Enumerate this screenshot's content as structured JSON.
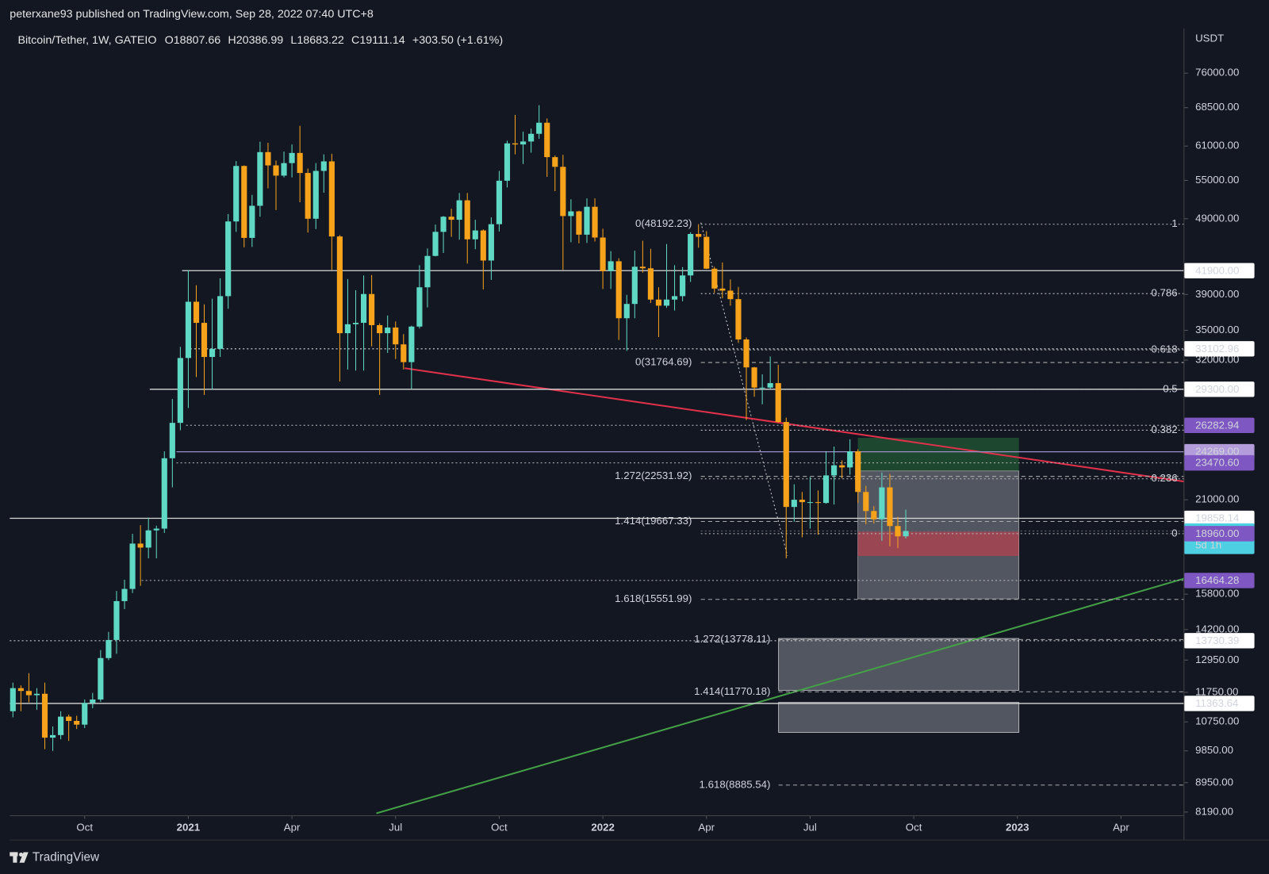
{
  "header": {
    "publisher": "peterxane93 published on TradingView.com, Sep 28, 2022 07:40 UTC+8"
  },
  "footer": {
    "brand": "TradingView"
  },
  "chart_data": {
    "type": "candlestick",
    "title": "Bitcoin/Tether, 1W, GATEIO",
    "ohlc_legend": [
      "O18807.66",
      "H20386.99",
      "L18683.22",
      "C19111.14",
      "+303.50 (+1.61%)"
    ],
    "currency": "USDT",
    "log_scale": true,
    "up_color": "#5fd9c4",
    "down_color": "#f7a21b",
    "ylim": [
      8100,
      87000
    ],
    "xlim": [
      -0.4,
      146.9
    ],
    "yticks": [
      {
        "value": 76000,
        "label": "76000.00"
      },
      {
        "value": 68500,
        "label": "68500.00"
      },
      {
        "value": 61000,
        "label": "61000.00"
      },
      {
        "value": 55000,
        "label": "55000.00"
      },
      {
        "value": 49000,
        "label": "49000.00"
      },
      {
        "value": 39000,
        "label": "39000.00"
      },
      {
        "value": 35000,
        "label": "35000.00"
      },
      {
        "value": 32000,
        "label": "32000.00"
      },
      {
        "value": 21000,
        "label": "21000.00"
      },
      {
        "value": 15800,
        "label": "15800.00"
      },
      {
        "value": 14200,
        "label": "14200.00"
      },
      {
        "value": 12950,
        "label": "12950.00"
      },
      {
        "value": 11750,
        "label": "11750.00"
      },
      {
        "value": 10750,
        "label": "10750.00"
      },
      {
        "value": 9850,
        "label": "9850.00"
      },
      {
        "value": 8950,
        "label": "8950.00"
      },
      {
        "value": 8190,
        "label": "8190.00"
      }
    ],
    "xticks": [
      {
        "value": 9,
        "label": "Oct"
      },
      {
        "value": 22,
        "label": "2021"
      },
      {
        "value": 35,
        "label": "Apr"
      },
      {
        "value": 48,
        "label": "Jul"
      },
      {
        "value": 61,
        "label": "Oct"
      },
      {
        "value": 74,
        "label": "2022"
      },
      {
        "value": 87,
        "label": "Apr"
      },
      {
        "value": 100,
        "label": "Jul"
      },
      {
        "value": 113,
        "label": "Oct"
      },
      {
        "value": 126,
        "label": "2023"
      },
      {
        "value": 139,
        "label": "Apr"
      }
    ],
    "ohlc": [
      [
        11100,
        12100,
        10900,
        11900
      ],
      [
        11900,
        12000,
        11100,
        11800
      ],
      [
        11800,
        12450,
        11400,
        11650
      ],
      [
        11650,
        11900,
        11150,
        11700
      ],
      [
        11700,
        12100,
        9900,
        10250
      ],
      [
        10250,
        10600,
        9850,
        10330
      ],
      [
        10330,
        11100,
        10200,
        10920
      ],
      [
        10920,
        10990,
        10150,
        10780
      ],
      [
        10780,
        10950,
        10520,
        10660
      ],
      [
        10660,
        11500,
        10550,
        11380
      ],
      [
        11380,
        11730,
        11200,
        11500
      ],
      [
        11500,
        13350,
        11420,
        13030
      ],
      [
        13030,
        14100,
        12950,
        13760
      ],
      [
        13760,
        15950,
        13200,
        15470
      ],
      [
        15470,
        16500,
        15100,
        16050
      ],
      [
        16050,
        18950,
        15850,
        18400
      ],
      [
        18400,
        19450,
        16200,
        18180
      ],
      [
        18180,
        19900,
        17600,
        19150
      ],
      [
        19150,
        19420,
        17600,
        19250
      ],
      [
        19250,
        24300,
        19000,
        23800
      ],
      [
        23800,
        28450,
        21800,
        26480
      ],
      [
        26480,
        33300,
        25900,
        32200
      ],
      [
        32200,
        41950,
        27700,
        38150
      ],
      [
        38150,
        40100,
        30400,
        35800
      ],
      [
        35800,
        37850,
        28800,
        32300
      ],
      [
        32300,
        38500,
        29250,
        33100
      ],
      [
        33100,
        40950,
        32300,
        38800
      ],
      [
        38800,
        49700,
        37350,
        48600
      ],
      [
        48600,
        58300,
        47100,
        57450
      ],
      [
        57450,
        57550,
        44950,
        46250
      ],
      [
        46250,
        52650,
        45000,
        50950
      ],
      [
        50950,
        61800,
        49300,
        59900
      ],
      [
        59900,
        61600,
        53700,
        57550
      ],
      [
        57550,
        58400,
        50300,
        55800
      ],
      [
        55800,
        60000,
        55500,
        57950
      ],
      [
        57950,
        61300,
        55500,
        59750
      ],
      [
        59750,
        64850,
        51500,
        56250
      ],
      [
        56250,
        57000,
        47000,
        49000
      ],
      [
        49000,
        57950,
        47500,
        56600
      ],
      [
        56600,
        59500,
        53000,
        58250
      ],
      [
        58250,
        59600,
        42000,
        46450
      ],
      [
        46450,
        46650,
        30000,
        34700
      ],
      [
        34700,
        40850,
        31100,
        35650
      ],
      [
        35650,
        39500,
        31000,
        35800
      ],
      [
        35800,
        41300,
        31000,
        39050
      ],
      [
        39050,
        41350,
        33350,
        35550
      ],
      [
        35550,
        35750,
        28800,
        34700
      ],
      [
        34700,
        36600,
        32700,
        35300
      ],
      [
        35300,
        35950,
        32100,
        33550
      ],
      [
        33550,
        34600,
        31100,
        31800
      ],
      [
        31800,
        35500,
        29300,
        35400
      ],
      [
        35400,
        42600,
        35200,
        39850
      ],
      [
        39850,
        44800,
        37500,
        43800
      ],
      [
        43800,
        48150,
        43750,
        47100
      ],
      [
        47100,
        49400,
        44200,
        49300
      ],
      [
        49300,
        50500,
        46400,
        48850
      ],
      [
        48850,
        52950,
        46000,
        51800
      ],
      [
        51800,
        52950,
        42800,
        46050
      ],
      [
        46050,
        48850,
        44700,
        47300
      ],
      [
        47300,
        47450,
        39600,
        43200
      ],
      [
        43200,
        49200,
        40750,
        48200
      ],
      [
        48200,
        56600,
        47150,
        54950
      ],
      [
        54950,
        62000,
        53850,
        61500
      ],
      [
        61500,
        67000,
        59500,
        61300
      ],
      [
        61300,
        63700,
        57800,
        61850
      ],
      [
        61850,
        64300,
        59800,
        63300
      ],
      [
        63300,
        69000,
        62350,
        65450
      ],
      [
        65450,
        66300,
        55600,
        59000
      ],
      [
        59000,
        59300,
        53250,
        57300
      ],
      [
        57300,
        59400,
        42000,
        49400
      ],
      [
        49400,
        51950,
        45650,
        50100
      ],
      [
        50100,
        50200,
        45500,
        46700
      ],
      [
        46700,
        52100,
        45550,
        50800
      ],
      [
        50800,
        52100,
        45750,
        46300
      ],
      [
        46300,
        47550,
        39650,
        41850
      ],
      [
        41850,
        44450,
        39650,
        43100
      ],
      [
        43100,
        43500,
        34000,
        36300
      ],
      [
        36300,
        38950,
        32900,
        37900
      ],
      [
        37900,
        44500,
        36300,
        42400
      ],
      [
        42400,
        45850,
        41650,
        42200
      ],
      [
        42200,
        44750,
        38000,
        38400
      ],
      [
        38400,
        39850,
        34300,
        37700
      ],
      [
        37700,
        45400,
        37450,
        38400
      ],
      [
        38400,
        42600,
        37150,
        38800
      ],
      [
        38800,
        42350,
        38200,
        41300
      ],
      [
        41300,
        47050,
        40500,
        46800
      ],
      [
        46800,
        48200,
        44900,
        46400
      ],
      [
        46400,
        47200,
        42100,
        42150
      ],
      [
        42150,
        42400,
        39200,
        39700
      ],
      [
        39700,
        42950,
        38550,
        39450
      ],
      [
        39450,
        40800,
        37700,
        38450
      ],
      [
        38450,
        39900,
        33700,
        34050
      ],
      [
        34050,
        34250,
        26700,
        31300
      ],
      [
        31300,
        31350,
        28650,
        29450
      ],
      [
        29450,
        30650,
        28000,
        29450
      ],
      [
        29450,
        32350,
        29300,
        29850
      ],
      [
        29850,
        31550,
        26500,
        26550
      ],
      [
        26550,
        26900,
        17600,
        20550
      ],
      [
        20550,
        22000,
        19650,
        21000
      ],
      [
        21000,
        21500,
        18750,
        20850
      ],
      [
        20850,
        22500,
        19250,
        20850
      ],
      [
        20850,
        21600,
        18900,
        20800
      ],
      [
        20800,
        24300,
        20750,
        22600
      ],
      [
        22600,
        24650,
        20700,
        23300
      ],
      [
        23300,
        23650,
        22400,
        23150
      ],
      [
        23150,
        25200,
        22650,
        24300
      ],
      [
        24300,
        24450,
        20800,
        21500
      ],
      [
        21500,
        21900,
        19500,
        20300
      ],
      [
        20300,
        20600,
        19550,
        19800
      ],
      [
        19800,
        22800,
        18550,
        21800
      ],
      [
        21800,
        22700,
        18250,
        19400
      ],
      [
        19400,
        19950,
        18150,
        18807
      ],
      [
        18807.66,
        20386.99,
        18683.22,
        19111.14
      ]
    ],
    "price_lines": [
      {
        "value": 41900,
        "label": "41900.00",
        "box_color": "#ffffff",
        "text_color": "#131722",
        "line": "solid",
        "line_color": "#d8d8d8"
      },
      {
        "value": 33102.96,
        "label": "33102.96",
        "box_color": "#ffffff",
        "text_color": "#131722",
        "line": "dotted",
        "line_color": "#d8d8d8"
      },
      {
        "value": 29300,
        "label": "29300.00",
        "box_color": "#ffffff",
        "text_color": "#131722",
        "line": "solid",
        "line_color": "#d8d8d8"
      },
      {
        "value": 26282.94,
        "label": "26282.94",
        "box_color": "#7e57c2",
        "text_color": "#ffffff",
        "line": "dotted",
        "line_color": "#bbbbbb"
      },
      {
        "value": 24269,
        "label": "24269.00",
        "box_color": "#b39ddb",
        "text_color": "#131722",
        "line": "solid",
        "line_color": "#9c8fc7"
      },
      {
        "value": 23470.6,
        "label": "23470.60",
        "box_color": "#7e57c2",
        "text_color": "#ffffff",
        "line": "dotted",
        "line_color": "#bbbbbb"
      },
      {
        "value": 19858.14,
        "label": "19858.14",
        "box_color": "#ffffff",
        "text_color": "#131722",
        "line": "solid",
        "line_color": "#d8d8d8"
      },
      {
        "value": 19111.14,
        "label": "19111.14",
        "sublabel": "5d 1h",
        "box_color": "#4dd0e1",
        "text_color": "#131722",
        "line": "dotted",
        "line_color": "#666666"
      },
      {
        "value": 18960,
        "label": "18960.00",
        "box_color": "#7e57c2",
        "text_color": "#ffffff",
        "line": "none",
        "line_color": "#bbbbbb"
      },
      {
        "value": 16464.28,
        "label": "16464.28",
        "box_color": "#7e57c2",
        "text_color": "#ffffff",
        "line": "dotted",
        "line_color": "#bbbbbb"
      },
      {
        "value": 13730.39,
        "label": "13730.39",
        "box_color": "#ffffff",
        "text_color": "#131722",
        "line": "dotted",
        "line_color": "#d8d8d8"
      },
      {
        "value": 11363.64,
        "label": "11363.64",
        "box_color": "#ffffff",
        "text_color": "#131722",
        "line": "solid",
        "line_color": "#d8d8d8"
      }
    ],
    "fib_retracement": [
      {
        "value": 48192.23,
        "label": "1",
        "origin_label": "0(48192.23)"
      },
      {
        "value": 39100,
        "label": "0.786"
      },
      {
        "value": 33000,
        "label": "0.618"
      },
      {
        "value": 29300,
        "label": "0.5"
      },
      {
        "value": 25900,
        "label": "0.382"
      },
      {
        "value": 22370,
        "label": "0.236"
      },
      {
        "value": 18960,
        "label": "0"
      }
    ],
    "fib_extension_1": [
      {
        "value": 31764.69,
        "label": "0(31764.69)"
      },
      {
        "value": 22531.92,
        "label": "1.272(22531.92)"
      },
      {
        "value": 19667.33,
        "label": "1.414(19667.33)"
      },
      {
        "value": 15551.99,
        "label": "1.618(15551.99)"
      }
    ],
    "fib_extension_2": [
      {
        "value": 13778.11,
        "label": "1.272(13778.11)"
      },
      {
        "value": 11770.18,
        "label": "1.414(11770.18)"
      },
      {
        "value": 8885.54,
        "label": "1.618(8885.54)"
      }
    ]
  }
}
